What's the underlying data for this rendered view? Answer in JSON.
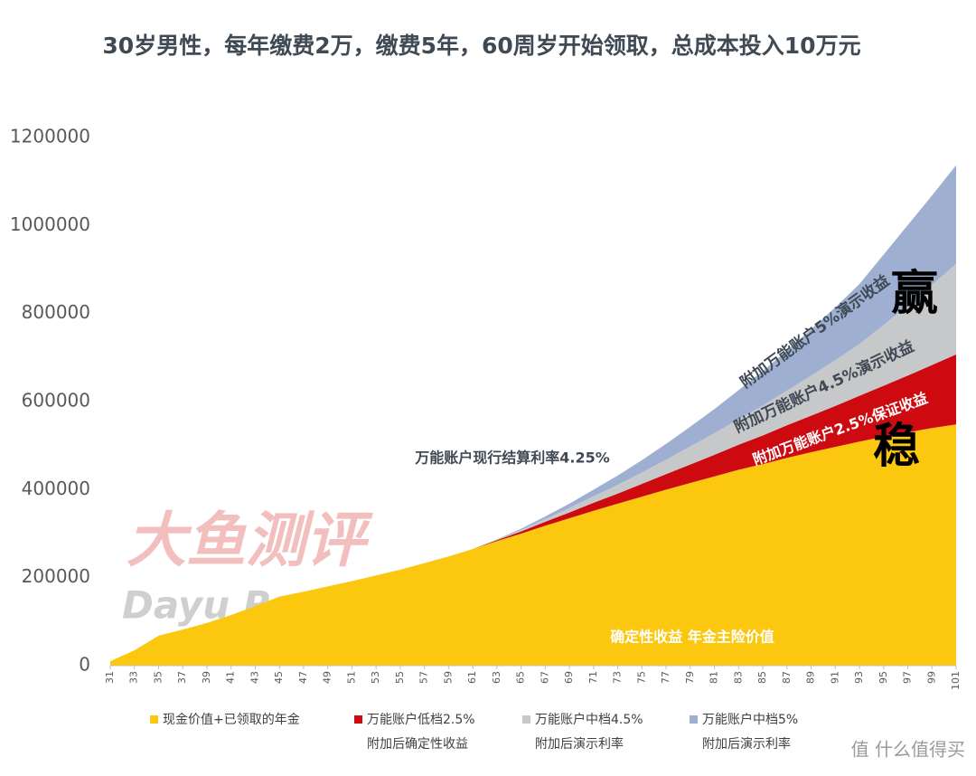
{
  "chart_data": {
    "type": "stacked_area",
    "title": "30岁男性，每年缴费2万，缴费5年，60周岁开始领取，总成本投入10万元",
    "x": [
      31,
      33,
      35,
      37,
      39,
      41,
      43,
      45,
      47,
      49,
      51,
      53,
      55,
      57,
      59,
      61,
      63,
      65,
      67,
      69,
      71,
      73,
      75,
      77,
      79,
      81,
      83,
      85,
      87,
      89,
      91,
      93,
      95,
      97,
      99,
      101
    ],
    "xlim": [
      31,
      101
    ],
    "xticks": [
      31,
      33,
      35,
      37,
      39,
      41,
      43,
      45,
      47,
      49,
      51,
      53,
      55,
      57,
      59,
      61,
      63,
      65,
      67,
      69,
      71,
      73,
      75,
      77,
      79,
      81,
      83,
      85,
      87,
      89,
      91,
      93,
      95,
      97,
      99,
      101
    ],
    "ylim": [
      0,
      1200000
    ],
    "yticks": [
      0,
      200000,
      400000,
      600000,
      800000,
      1000000,
      1200000
    ],
    "grid": false,
    "series": [
      {
        "name": "现金价值+已领取的年金",
        "color": "#fcc70f",
        "values": [
          10000,
          35000,
          68000,
          82000,
          97000,
          115000,
          135000,
          157000,
          168000,
          180000,
          192000,
          205000,
          218000,
          233000,
          248000,
          265000,
          283000,
          300000,
          318000,
          335000,
          352000,
          368000,
          384000,
          400000,
          415000,
          430000,
          445000,
          458000,
          472000,
          485000,
          497000,
          509000,
          520000,
          530000,
          540000,
          548000
        ]
      },
      {
        "name": "万能账户低档2.5%\n附加后确定性收益",
        "color": "#cc0a10",
        "values": [
          0,
          0,
          0,
          0,
          0,
          0,
          0,
          0,
          0,
          0,
          0,
          0,
          0,
          0,
          0,
          0,
          2000,
          5000,
          9000,
          13000,
          18000,
          23000,
          29000,
          35000,
          42000,
          49000,
          57000,
          65000,
          74000,
          83000,
          93000,
          104000,
          116000,
          129000,
          143000,
          159000
        ]
      },
      {
        "name": "万能账户中档4.5%\n附加后演示利率",
        "color": "#c7c8ca",
        "values": [
          0,
          0,
          0,
          0,
          0,
          0,
          0,
          0,
          0,
          0,
          0,
          0,
          0,
          0,
          0,
          0,
          1000,
          3000,
          6000,
          10000,
          15000,
          20000,
          26000,
          33000,
          41000,
          49000,
          58000,
          68000,
          79000,
          91000,
          104000,
          118000,
          138000,
          160000,
          182000,
          206000
        ]
      },
      {
        "name": "万能账户中档5%\n附加后演示利率",
        "color": "#9eafd2",
        "values": [
          0,
          0,
          0,
          0,
          0,
          0,
          0,
          0,
          0,
          0,
          0,
          0,
          0,
          0,
          0,
          0,
          1000,
          3000,
          6000,
          10000,
          15000,
          21000,
          28000,
          36000,
          45000,
          55000,
          66000,
          78000,
          91000,
          105000,
          120000,
          136000,
          160000,
          182000,
          203000,
          224000
        ]
      }
    ],
    "annotations": [
      "万能账户现行结算利率4.25%",
      "附加万能账户5%演示收益",
      "附加万能账户4.5%演示收益",
      "附加万能账户2.5%保证收益",
      "赢",
      "稳",
      "确定性收益  年金主险价值"
    ],
    "watermark": [
      "大鱼测评",
      "Dayu Ranking"
    ],
    "logo": "值 什么值得买"
  }
}
